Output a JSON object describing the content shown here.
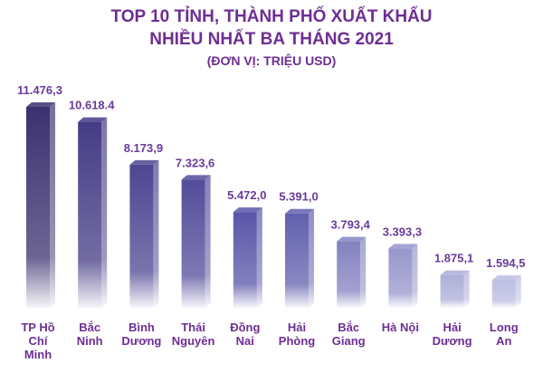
{
  "chart_data": {
    "type": "bar",
    "title": "TOP 10 TỈNH, THÀNH PHỐ XUẤT KHẨU",
    "subtitle": "NHIỀU NHẤT BA THÁNG 2021",
    "unit": "(ĐƠN VỊ: TRIỆU USD)",
    "categories": [
      "TP Hồ Chí Minh",
      "Bắc Ninh",
      "Bình Dương",
      "Thái Nguyên",
      "Đồng Nai",
      "Hải Phòng",
      "Bắc Giang",
      "Hà Nội",
      "Hải Dương",
      "Long An"
    ],
    "values": [
      11476.3,
      10618.4,
      8173.9,
      7323.6,
      5472.0,
      5391.0,
      3793.4,
      3393.3,
      1875.1,
      1594.5
    ],
    "value_labels": [
      "11.476,3",
      "10.618.4",
      "8.173,9",
      "7.323,6",
      "5.472,0",
      "5.391,0",
      "3.793,4",
      "3.393,3",
      "1.875,1",
      "1.594,5"
    ],
    "colors": [
      "#3b3270",
      "#453c85",
      "#4e4691",
      "#534c9a",
      "#5a55a8",
      "#6260ae",
      "#8482c0",
      "#9796cb",
      "#aeaed8",
      "#bcbde2"
    ]
  }
}
